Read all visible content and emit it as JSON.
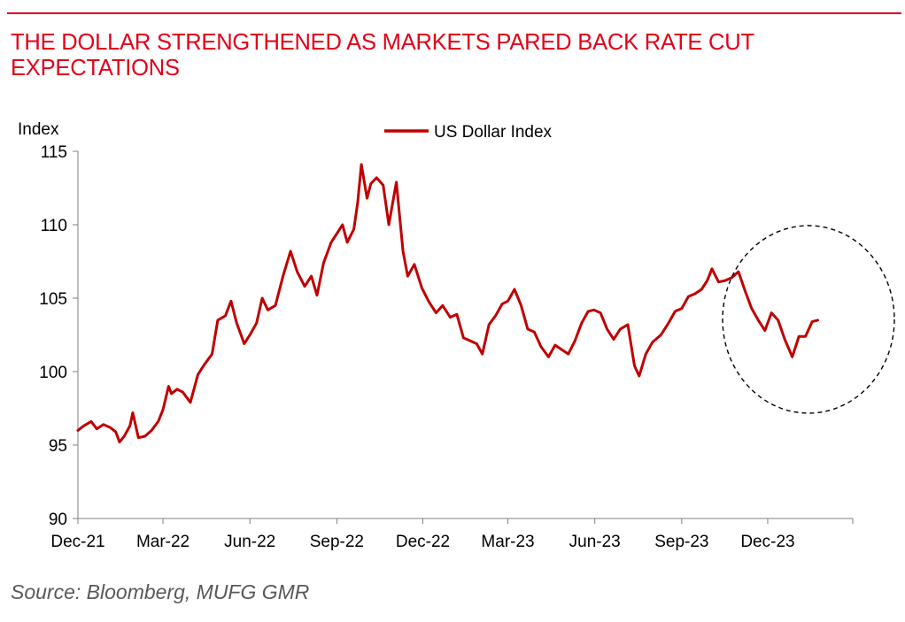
{
  "header": {
    "title": "THE DOLLAR STRENGTHENED AS MARKETS PARED BACK RATE CUT EXPECTATIONS",
    "source": "Source: Bloomberg, MUFG GMR"
  },
  "colors": {
    "accent": "#e2001a",
    "series_line": "#c00000",
    "axis": "#7f7f7f",
    "annotation": "#000000"
  },
  "chart_data": {
    "type": "line",
    "title": "THE DOLLAR STRENGTHENED AS MARKETS PARED BACK RATE CUT EXPECTATIONS",
    "ylabel": "Index",
    "xlabel": "",
    "ylim": [
      90,
      115
    ],
    "yticks": [
      90,
      95,
      100,
      105,
      110,
      115
    ],
    "xlim": [
      "2021-12-01",
      "2024-02-29"
    ],
    "xticks": [
      {
        "date": "2021-12-01",
        "label": "Dec-21"
      },
      {
        "date": "2022-03-01",
        "label": "Mar-22"
      },
      {
        "date": "2022-06-01",
        "label": "Jun-22"
      },
      {
        "date": "2022-09-01",
        "label": "Sep-22"
      },
      {
        "date": "2022-12-01",
        "label": "Dec-22"
      },
      {
        "date": "2023-03-01",
        "label": "Mar-23"
      },
      {
        "date": "2023-06-01",
        "label": "Jun-23"
      },
      {
        "date": "2023-09-01",
        "label": "Sep-23"
      },
      {
        "date": "2023-12-01",
        "label": "Dec-23"
      }
    ],
    "grid": false,
    "legend": "top-center",
    "annotation": "dashed circle highlighting Sep-23 to Feb-24 period",
    "series": [
      {
        "name": "US Dollar Index",
        "color": "#c00000",
        "points": [
          [
            "2021-12-01",
            96.0
          ],
          [
            "2021-12-07",
            96.3
          ],
          [
            "2021-12-15",
            96.6
          ],
          [
            "2021-12-21",
            96.1
          ],
          [
            "2021-12-28",
            96.4
          ],
          [
            "2022-01-04",
            96.2
          ],
          [
            "2022-01-10",
            95.9
          ],
          [
            "2022-01-14",
            95.2
          ],
          [
            "2022-01-19",
            95.6
          ],
          [
            "2022-01-25",
            96.3
          ],
          [
            "2022-01-28",
            97.2
          ],
          [
            "2022-02-03",
            95.5
          ],
          [
            "2022-02-10",
            95.6
          ],
          [
            "2022-02-17",
            96.0
          ],
          [
            "2022-02-24",
            96.6
          ],
          [
            "2022-03-01",
            97.4
          ],
          [
            "2022-03-07",
            99.0
          ],
          [
            "2022-03-10",
            98.5
          ],
          [
            "2022-03-16",
            98.8
          ],
          [
            "2022-03-22",
            98.6
          ],
          [
            "2022-03-30",
            97.9
          ],
          [
            "2022-04-07",
            99.8
          ],
          [
            "2022-04-14",
            100.5
          ],
          [
            "2022-04-22",
            101.2
          ],
          [
            "2022-04-28",
            103.5
          ],
          [
            "2022-05-06",
            103.8
          ],
          [
            "2022-05-12",
            104.8
          ],
          [
            "2022-05-18",
            103.3
          ],
          [
            "2022-05-26",
            101.9
          ],
          [
            "2022-06-01",
            102.5
          ],
          [
            "2022-06-08",
            103.3
          ],
          [
            "2022-06-14",
            105.0
          ],
          [
            "2022-06-20",
            104.2
          ],
          [
            "2022-06-28",
            104.5
          ],
          [
            "2022-07-06",
            106.5
          ],
          [
            "2022-07-14",
            108.2
          ],
          [
            "2022-07-21",
            106.8
          ],
          [
            "2022-07-29",
            105.8
          ],
          [
            "2022-08-05",
            106.5
          ],
          [
            "2022-08-11",
            105.2
          ],
          [
            "2022-08-18",
            107.4
          ],
          [
            "2022-08-26",
            108.8
          ],
          [
            "2022-09-01",
            109.4
          ],
          [
            "2022-09-07",
            110.0
          ],
          [
            "2022-09-12",
            108.8
          ],
          [
            "2022-09-19",
            109.7
          ],
          [
            "2022-09-23",
            111.5
          ],
          [
            "2022-09-27",
            114.1
          ],
          [
            "2022-10-03",
            111.8
          ],
          [
            "2022-10-07",
            112.8
          ],
          [
            "2022-10-13",
            113.2
          ],
          [
            "2022-10-20",
            112.7
          ],
          [
            "2022-10-26",
            110.0
          ],
          [
            "2022-11-03",
            112.9
          ],
          [
            "2022-11-10",
            108.2
          ],
          [
            "2022-11-15",
            106.5
          ],
          [
            "2022-11-22",
            107.3
          ],
          [
            "2022-11-30",
            105.7
          ],
          [
            "2022-12-07",
            104.8
          ],
          [
            "2022-12-15",
            104.0
          ],
          [
            "2022-12-22",
            104.5
          ],
          [
            "2022-12-30",
            103.7
          ],
          [
            "2023-01-06",
            103.9
          ],
          [
            "2023-01-13",
            102.3
          ],
          [
            "2023-01-20",
            102.1
          ],
          [
            "2023-01-27",
            101.9
          ],
          [
            "2023-02-02",
            101.2
          ],
          [
            "2023-02-09",
            103.2
          ],
          [
            "2023-02-16",
            103.8
          ],
          [
            "2023-02-23",
            104.6
          ],
          [
            "2023-03-01",
            104.8
          ],
          [
            "2023-03-08",
            105.6
          ],
          [
            "2023-03-15",
            104.5
          ],
          [
            "2023-03-22",
            102.9
          ],
          [
            "2023-03-29",
            102.7
          ],
          [
            "2023-04-05",
            101.7
          ],
          [
            "2023-04-13",
            101.0
          ],
          [
            "2023-04-20",
            101.8
          ],
          [
            "2023-04-27",
            101.5
          ],
          [
            "2023-05-04",
            101.2
          ],
          [
            "2023-05-11",
            102.1
          ],
          [
            "2023-05-18",
            103.3
          ],
          [
            "2023-05-25",
            104.1
          ],
          [
            "2023-05-31",
            104.2
          ],
          [
            "2023-06-07",
            104.0
          ],
          [
            "2023-06-14",
            102.9
          ],
          [
            "2023-06-21",
            102.2
          ],
          [
            "2023-06-28",
            102.9
          ],
          [
            "2023-07-06",
            103.2
          ],
          [
            "2023-07-13",
            100.4
          ],
          [
            "2023-07-18",
            99.7
          ],
          [
            "2023-07-25",
            101.2
          ],
          [
            "2023-08-01",
            102.0
          ],
          [
            "2023-08-10",
            102.5
          ],
          [
            "2023-08-18",
            103.3
          ],
          [
            "2023-08-25",
            104.1
          ],
          [
            "2023-09-01",
            104.3
          ],
          [
            "2023-09-08",
            105.1
          ],
          [
            "2023-09-15",
            105.3
          ],
          [
            "2023-09-22",
            105.6
          ],
          [
            "2023-09-28",
            106.2
          ],
          [
            "2023-10-03",
            107.0
          ],
          [
            "2023-10-10",
            106.1
          ],
          [
            "2023-10-17",
            106.2
          ],
          [
            "2023-10-24",
            106.4
          ],
          [
            "2023-10-31",
            106.8
          ],
          [
            "2023-11-07",
            105.5
          ],
          [
            "2023-11-14",
            104.3
          ],
          [
            "2023-11-21",
            103.5
          ],
          [
            "2023-11-28",
            102.8
          ],
          [
            "2023-12-05",
            104.0
          ],
          [
            "2023-12-12",
            103.5
          ],
          [
            "2023-12-19",
            102.2
          ],
          [
            "2023-12-27",
            101.0
          ],
          [
            "2024-01-03",
            102.4
          ],
          [
            "2024-01-10",
            102.4
          ],
          [
            "2024-01-17",
            103.4
          ],
          [
            "2024-01-23",
            103.5
          ]
        ]
      }
    ]
  }
}
